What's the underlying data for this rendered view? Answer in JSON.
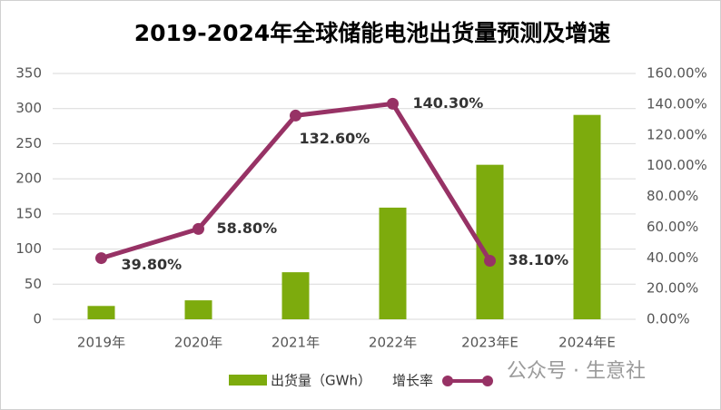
{
  "chart_data": {
    "type": "bar",
    "title": "2019-2024年全球储能电池出货量预测及增速",
    "categories": [
      "2019年",
      "2020年",
      "2021年",
      "2022年",
      "2023年E",
      "2024年E"
    ],
    "series": [
      {
        "name": "出货量（GWh）",
        "type": "bar",
        "color": "#7dab0d",
        "values": [
          19,
          27,
          67,
          159,
          220,
          291
        ]
      },
      {
        "name": "增长率",
        "type": "line",
        "axis": "y2",
        "color": "#973265",
        "values": [
          39.8,
          58.8,
          132.6,
          140.3,
          38.1,
          null
        ],
        "value_labels": [
          "39.80%",
          "58.80%",
          "132.60%",
          "140.30%",
          "38.10%",
          null
        ]
      }
    ],
    "ylim": [
      0,
      350
    ],
    "yticks": [
      0,
      50,
      100,
      150,
      200,
      250,
      300,
      350
    ],
    "y2lim": [
      0,
      160
    ],
    "y2ticks": [
      {
        "value": 0,
        "label": "0.00%"
      },
      {
        "value": 20,
        "label": "20.00%"
      },
      {
        "value": 40,
        "label": "40.00%"
      },
      {
        "value": 60,
        "label": "60.00%"
      },
      {
        "value": 80,
        "label": "80.00%"
      },
      {
        "value": 100,
        "label": "100.00%"
      },
      {
        "value": 120,
        "label": "120.00%"
      },
      {
        "value": 140,
        "label": "140.00%"
      },
      {
        "value": 160,
        "label": "160.00%"
      }
    ],
    "grid": true,
    "legend": "bottom",
    "watermark": "公众号 · 生意社"
  }
}
